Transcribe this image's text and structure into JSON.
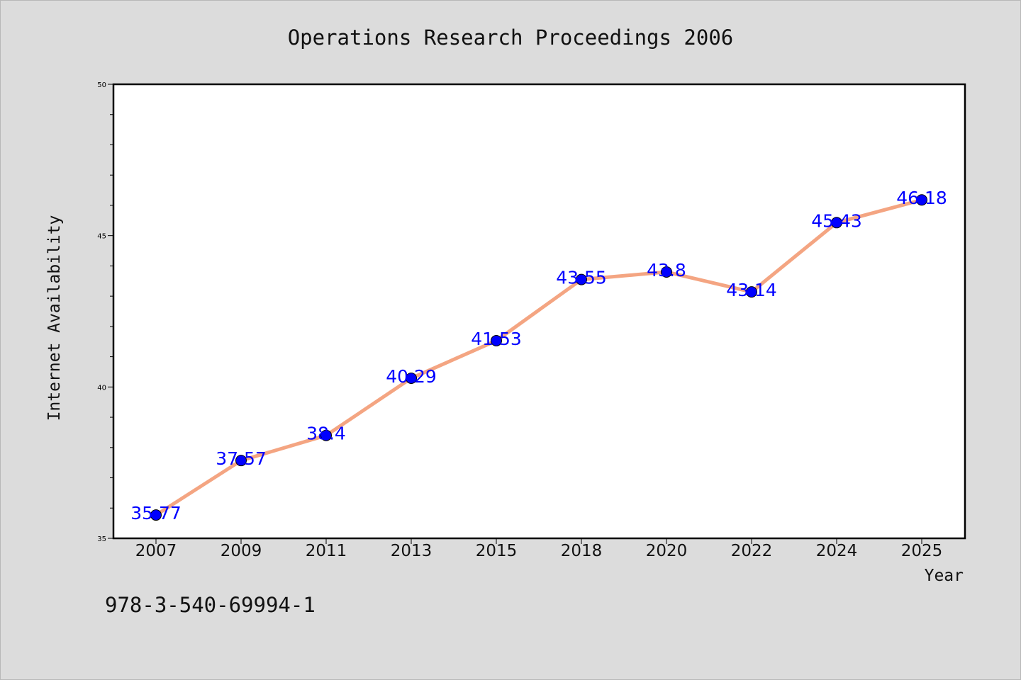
{
  "chart_data": {
    "type": "line",
    "title": "Operations Research Proceedings 2006",
    "xlabel": "Year",
    "ylabel": "Internet Availability",
    "categories": [
      "2007",
      "2009",
      "2011",
      "2013",
      "2015",
      "2018",
      "2020",
      "2022",
      "2024",
      "2025"
    ],
    "values": [
      35.77,
      37.57,
      38.4,
      40.29,
      41.53,
      43.55,
      43.8,
      43.14,
      45.43,
      46.18
    ],
    "value_labels": [
      "35.77",
      "37.57",
      "38.4",
      "40.29",
      "41.53",
      "43.55",
      "43.8",
      "43.14",
      "45.43",
      "46.18"
    ],
    "ylim": [
      35,
      50
    ],
    "yticks": [
      "35",
      "40",
      "45",
      "50"
    ],
    "grid": false,
    "legend": "none",
    "line_color": "#f4a582",
    "marker_color": "#0000ff",
    "label_color": "#0000ff"
  },
  "footer": {
    "isbn": "978-3-540-69994-1"
  }
}
